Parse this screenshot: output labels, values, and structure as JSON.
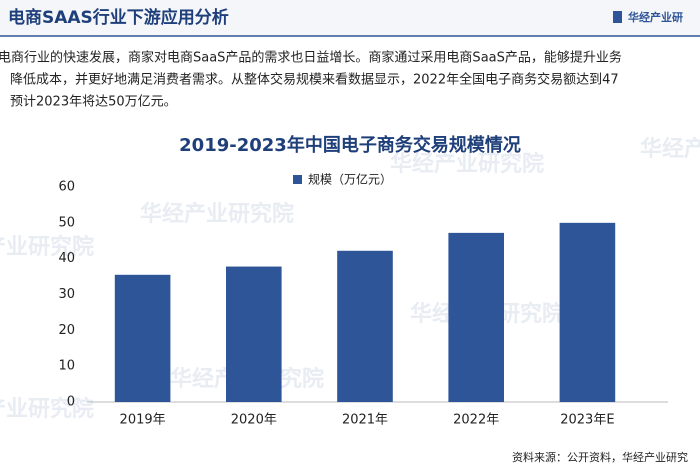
{
  "header": {
    "title": "电商SAAS行业下游应用分析",
    "brand": "华经产业研"
  },
  "paragraph": [
    "电商行业的快速发展，商家对电商SaaS产品的需求也日益增长。商家通过采用电商SaaS产品，能够提升业务",
    "降低成本，并更好地满足消费者需求。从整体交易规模来看数据显示，2022年全国电子商务交易额达到47",
    "预计2023年将达50万亿元。"
  ],
  "watermark": "华经产业研究院",
  "chart_data": {
    "type": "bar",
    "title": "2019-2023年中国电子商务交易规模情况",
    "categories": [
      "2019年",
      "2020年",
      "2021年",
      "2022年",
      "2023年E"
    ],
    "series": [
      {
        "name": "规模（万亿元）",
        "color": "#2e5597",
        "values": [
          35.5,
          37.8,
          42.2,
          47.2,
          50
        ]
      }
    ],
    "ylim": [
      0,
      60
    ],
    "yticks": [
      0,
      10,
      20,
      30,
      40,
      50,
      60
    ],
    "grid": false,
    "legend": "top"
  },
  "source": "资料来源：公开资料，华经产业研究"
}
